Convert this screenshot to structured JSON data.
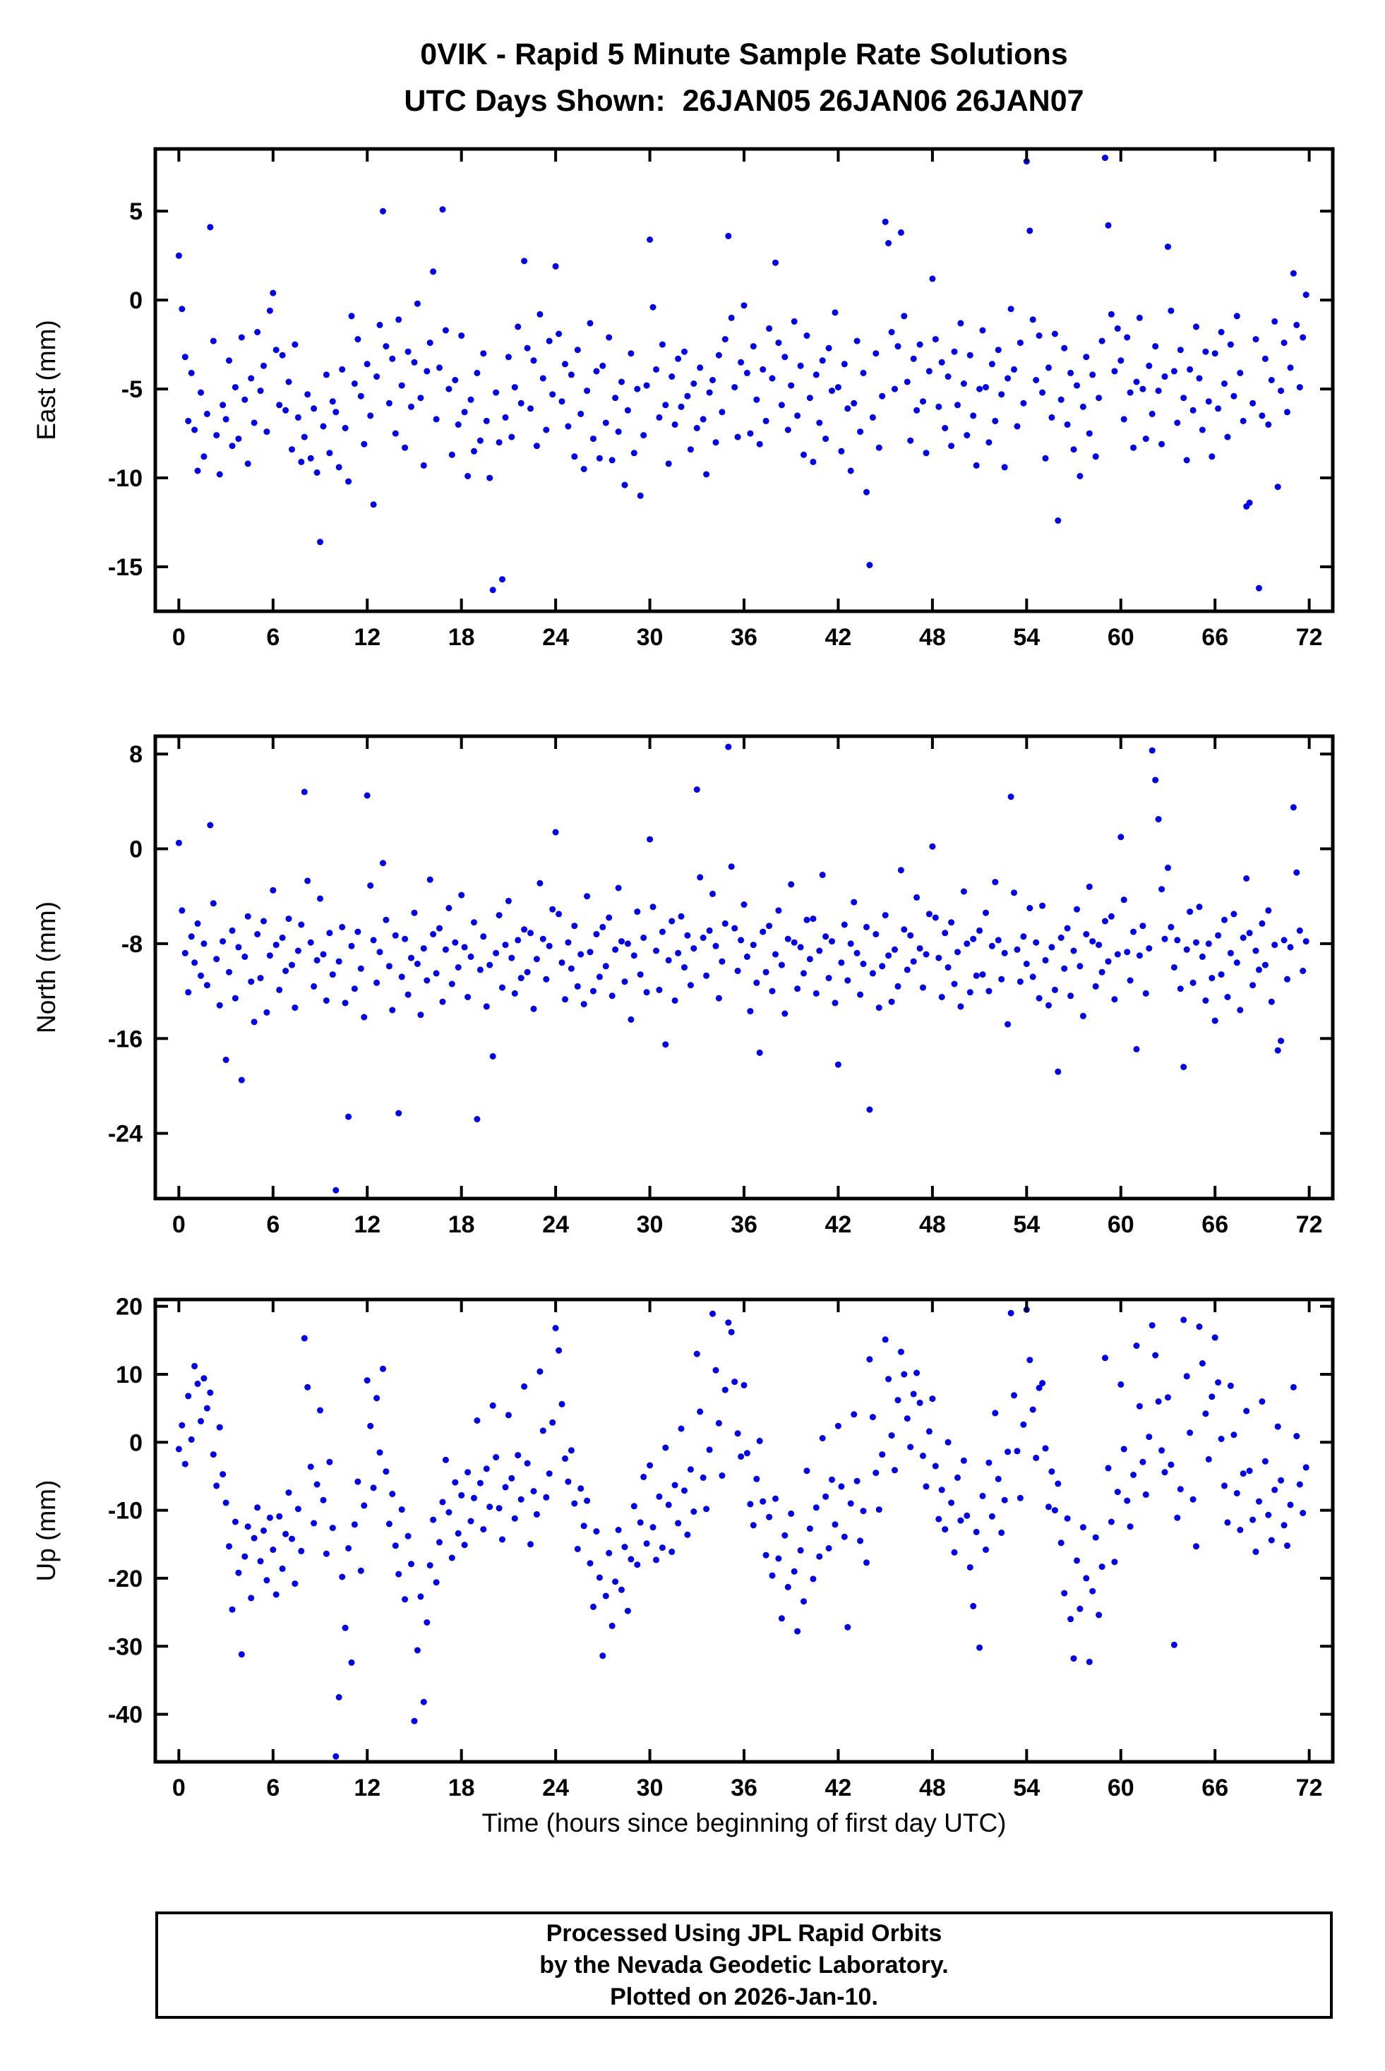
{
  "title": {
    "line1": "0VIK - Rapid 5 Minute Sample Rate Solutions",
    "line2": "UTC Days Shown:  26JAN05 26JAN06 26JAN07"
  },
  "xlabel": "Time (hours since beginning of first day UTC)",
  "footer": {
    "line1": "Processed Using JPL Rapid Orbits",
    "line2": "by the Nevada Geodetic Laboratory.",
    "line3": "Plotted on 2026-Jan-10."
  },
  "style": {
    "point_color": "#0000EE",
    "point_radius": 4.5,
    "frame_color": "#000000"
  },
  "chart_data": [
    {
      "type": "scatter",
      "name": "east",
      "ylabel": "East (mm)",
      "x_start": 0,
      "x_step": 0.2,
      "xlim": [
        -1.5,
        73.5
      ],
      "ylim": [
        -17.5,
        8.5
      ],
      "xticks": [
        0,
        6,
        12,
        18,
        24,
        30,
        36,
        42,
        48,
        54,
        60,
        66,
        72
      ],
      "yticks": [
        5,
        0,
        -5,
        -10,
        -15
      ],
      "y": [
        2.5,
        -0.5,
        -3.2,
        -6.8,
        -4.1,
        -7.3,
        -9.6,
        -5.2,
        -8.8,
        -6.4,
        4.1,
        -2.3,
        -7.6,
        -9.8,
        -5.9,
        -6.7,
        -3.4,
        -8.2,
        -4.9,
        -7.8,
        -2.1,
        -5.6,
        -9.2,
        -4.4,
        -6.9,
        -1.8,
        -5.1,
        -3.7,
        -7.4,
        -0.6,
        0.4,
        -2.8,
        -5.9,
        -3.1,
        -6.2,
        -4.6,
        -8.4,
        -2.5,
        -6.6,
        -9.1,
        -7.7,
        -5.3,
        -8.9,
        -6.1,
        -9.7,
        -13.6,
        -7.1,
        -4.2,
        -8.6,
        -5.7,
        -6.3,
        -9.4,
        -3.9,
        -7.2,
        -10.2,
        -0.9,
        -4.7,
        -2.2,
        -5.4,
        -8.1,
        -3.6,
        -6.5,
        -11.5,
        -4.3,
        -1.4,
        5.0,
        -2.6,
        -5.8,
        -3.3,
        -7.5,
        -1.1,
        -4.8,
        -8.3,
        -2.9,
        -6.0,
        -3.5,
        -0.2,
        -5.5,
        -9.3,
        -4.0,
        -2.4,
        1.6,
        -6.7,
        -3.8,
        5.1,
        -1.7,
        -5.0,
        -8.7,
        -4.5,
        -7.0,
        -2.0,
        -6.3,
        -9.9,
        -5.6,
        -8.5,
        -4.1,
        -7.9,
        -3.0,
        -6.8,
        -10.0,
        -16.3,
        -5.2,
        -8.0,
        -15.7,
        -6.6,
        -3.2,
        -7.7,
        -4.9,
        -1.5,
        -5.8,
        2.2,
        -2.7,
        -6.1,
        -3.4,
        -8.2,
        -0.8,
        -4.4,
        -7.3,
        -2.3,
        -5.3,
        1.9,
        -1.9,
        -5.7,
        -3.6,
        -7.1,
        -4.2,
        -8.8,
        -2.8,
        -6.4,
        -9.5,
        -5.1,
        -1.3,
        -7.8,
        -4.0,
        -8.9,
        -3.7,
        -6.9,
        -2.1,
        -9.0,
        -5.5,
        -7.4,
        -4.6,
        -10.4,
        -6.2,
        -3.0,
        -8.6,
        -5.0,
        -11.0,
        -7.6,
        -4.8,
        3.4,
        -0.4,
        -3.9,
        -6.6,
        -2.5,
        -5.9,
        -9.2,
        -4.3,
        -7.0,
        -3.3,
        -6.0,
        -2.9,
        -5.4,
        -8.4,
        -4.7,
        -7.2,
        -3.8,
        -6.7,
        -9.8,
        -5.2,
        -4.5,
        -8.0,
        -3.1,
        -6.3,
        -2.2,
        3.6,
        -1.0,
        -4.9,
        -7.7,
        -3.5,
        -0.3,
        -4.1,
        -7.5,
        -2.6,
        -5.6,
        -8.1,
        -3.9,
        -6.8,
        -1.6,
        -4.4,
        2.1,
        -2.4,
        -5.9,
        -3.2,
        -7.3,
        -4.8,
        -1.2,
        -6.5,
        -3.7,
        -8.7,
        -2.0,
        -5.5,
        -9.1,
        -4.2,
        -6.9,
        -3.4,
        -7.8,
        -2.7,
        -5.1,
        -0.7,
        -4.9,
        -8.5,
        -3.6,
        -6.1,
        -9.6,
        -5.8,
        -2.3,
        -7.4,
        -4.1,
        -10.8,
        -14.9,
        -6.6,
        -3.0,
        -8.3,
        -5.4,
        4.4,
        3.2,
        -1.8,
        -5.0,
        -2.6,
        3.8,
        -0.9,
        -4.6,
        -7.9,
        -3.3,
        -6.2,
        -2.5,
        -5.7,
        -8.6,
        -4.0,
        1.2,
        -2.2,
        -6.0,
        -3.5,
        -7.2,
        -4.3,
        -8.2,
        -2.9,
        -5.9,
        -1.3,
        -4.7,
        -7.6,
        -3.1,
        -6.5,
        -9.3,
        -5.0,
        -1.7,
        -4.9,
        -8.0,
        -3.6,
        -6.8,
        -2.8,
        -5.3,
        -9.4,
        -4.4,
        -0.5,
        -3.9,
        -7.1,
        -2.4,
        -5.8,
        7.8,
        3.9,
        -1.1,
        -4.5,
        -2.0,
        -5.2,
        -8.9,
        -3.8,
        -6.6,
        -1.9,
        -12.4,
        -5.6,
        -2.7,
        -7.0,
        -4.1,
        -8.4,
        -4.8,
        -9.9,
        -6.0,
        -3.2,
        -7.5,
        -4.2,
        -8.8,
        -5.5,
        -2.3,
        8.0,
        4.2,
        -0.8,
        -4.0,
        -1.6,
        -3.4,
        -6.7,
        -2.1,
        -5.2,
        -8.3,
        -4.6,
        -1.0,
        -5.0,
        -7.8,
        -3.7,
        -6.4,
        -2.6,
        -5.1,
        -8.1,
        -4.3,
        3.0,
        -0.6,
        -4.0,
        -6.9,
        -2.8,
        -5.5,
        -9.0,
        -3.9,
        -6.2,
        -1.5,
        -4.4,
        -7.3,
        -2.9,
        -5.7,
        -8.8,
        -3.0,
        -6.1,
        -1.8,
        -4.7,
        -7.7,
        -2.5,
        -5.4,
        -0.9,
        -4.1,
        -6.8,
        -11.6,
        -11.4,
        -5.8,
        -2.2,
        -16.2,
        -6.5,
        -3.3,
        -7.0,
        -4.5,
        -1.2,
        -10.5,
        -5.1,
        -2.4,
        -6.3,
        -3.8,
        1.5,
        -1.4,
        -4.9,
        -2.1,
        0.3
      ]
    },
    {
      "type": "scatter",
      "name": "north",
      "ylabel": "North (mm)",
      "x_start": 0,
      "x_step": 0.2,
      "xlim": [
        -1.5,
        73.5
      ],
      "ylim": [
        -29.5,
        9.5
      ],
      "xticks": [
        0,
        6,
        12,
        18,
        24,
        30,
        36,
        42,
        48,
        54,
        60,
        66,
        72
      ],
      "yticks": [
        8,
        0,
        -8,
        -16,
        -24
      ],
      "y": [
        0.5,
        -5.2,
        -8.8,
        -12.1,
        -7.4,
        -9.6,
        -6.3,
        -10.7,
        -8.0,
        -11.5,
        2.0,
        -4.6,
        -9.3,
        -13.2,
        -7.8,
        -17.8,
        -10.4,
        -6.9,
        -12.6,
        -8.3,
        -19.5,
        -9.1,
        -5.7,
        -11.2,
        -14.6,
        -7.2,
        -10.9,
        -6.1,
        -13.8,
        -9.0,
        -3.5,
        -8.1,
        -11.9,
        -7.5,
        -10.3,
        -5.9,
        -9.8,
        -13.4,
        -8.6,
        -6.4,
        4.8,
        -2.7,
        -7.9,
        -11.6,
        -9.4,
        -4.2,
        -8.9,
        -12.8,
        -7.1,
        -10.6,
        -28.8,
        -9.5,
        -6.6,
        -13.0,
        -22.6,
        -8.2,
        -11.8,
        -7.0,
        -10.1,
        -14.2,
        4.5,
        -3.1,
        -7.7,
        -11.3,
        -8.7,
        -1.2,
        -6.0,
        -9.9,
        -13.6,
        -7.3,
        -22.3,
        -10.8,
        -7.6,
        -12.3,
        -9.2,
        -5.4,
        -9.7,
        -14.0,
        -8.4,
        -11.1,
        -2.6,
        -7.2,
        -10.5,
        -6.7,
        -12.9,
        -8.5,
        -5.0,
        -11.4,
        -7.9,
        -10.0,
        -3.9,
        -8.3,
        -12.5,
        -9.1,
        -6.2,
        -22.8,
        -10.2,
        -7.4,
        -13.3,
        -9.8,
        -17.5,
        -8.8,
        -5.6,
        -11.7,
        -8.1,
        -4.4,
        -9.2,
        -12.2,
        -7.7,
        -10.9,
        -6.8,
        -10.4,
        -7.1,
        -13.5,
        -9.3,
        -2.9,
        -7.6,
        -11.0,
        -8.2,
        -5.1,
        1.4,
        -5.5,
        -9.6,
        -12.7,
        -7.9,
        -10.1,
        -6.5,
        -11.6,
        -8.9,
        -13.1,
        -4.0,
        -8.7,
        -12.0,
        -7.2,
        -10.8,
        -6.6,
        -9.9,
        -5.8,
        -12.4,
        -8.5,
        -3.3,
        -7.8,
        -11.2,
        -8.0,
        -14.4,
        -9.0,
        -5.3,
        -10.6,
        -7.5,
        -12.1,
        0.8,
        -4.9,
        -8.6,
        -11.9,
        -7.0,
        -16.5,
        -9.4,
        -6.1,
        -12.8,
        -8.8,
        -5.7,
        -10.0,
        -7.3,
        -11.5,
        -8.4,
        5.0,
        -2.4,
        -7.5,
        -10.7,
        -6.9,
        -3.8,
        -8.2,
        -12.6,
        -9.5,
        -6.3,
        8.6,
        -1.5,
        -6.7,
        -10.3,
        -7.7,
        -4.7,
        -9.1,
        -13.7,
        -8.1,
        -11.3,
        -17.2,
        -7.0,
        -10.4,
        -6.5,
        -12.0,
        -8.9,
        -5.2,
        -9.8,
        -13.9,
        -7.6,
        -3.0,
        -7.9,
        -11.8,
        -8.3,
        -10.5,
        -6.0,
        -9.3,
        -5.9,
        -12.2,
        -8.6,
        -2.2,
        -7.4,
        -10.9,
        -7.8,
        -13.0,
        -18.2,
        -9.6,
        -6.4,
        -11.1,
        -8.0,
        -4.5,
        -8.8,
        -12.3,
        -9.7,
        -6.6,
        -22.0,
        -10.5,
        -7.2,
        -13.4,
        -9.9,
        -5.6,
        -9.0,
        -12.9,
        -8.5,
        -11.6,
        -1.8,
        -6.8,
        -10.2,
        -7.3,
        -9.5,
        -4.1,
        -8.4,
        -11.7,
        -8.9,
        -5.5,
        0.2,
        -5.8,
        -9.2,
        -12.5,
        -7.1,
        -10.0,
        -6.2,
        -11.4,
        -8.7,
        -13.3,
        -3.6,
        -8.0,
        -12.1,
        -7.6,
        -10.7,
        -6.9,
        -10.6,
        -5.4,
        -12.0,
        -8.2,
        -2.8,
        -7.7,
        -11.0,
        -8.8,
        -14.8,
        4.4,
        -3.7,
        -8.5,
        -11.2,
        -7.4,
        -9.7,
        -5.0,
        -10.8,
        -7.9,
        -12.6,
        -4.8,
        -9.4,
        -13.2,
        -8.3,
        -11.9,
        -18.8,
        -7.5,
        -10.1,
        -6.7,
        -12.4,
        -8.6,
        -5.1,
        -9.9,
        -14.1,
        -7.2,
        -3.2,
        -7.8,
        -11.6,
        -8.1,
        -10.4,
        -6.1,
        -9.5,
        -5.7,
        -12.7,
        -8.9,
        1.0,
        -4.3,
        -8.7,
        -11.1,
        -7.0,
        -16.9,
        -9.0,
        -6.5,
        -12.2,
        -8.4,
        8.3,
        5.8,
        2.5,
        -3.4,
        -7.6,
        -1.6,
        -6.6,
        -10.0,
        -7.7,
        -11.8,
        -18.4,
        -8.5,
        -5.3,
        -11.3,
        -7.9,
        -4.9,
        -9.1,
        -12.8,
        -8.0,
        -10.9,
        -14.5,
        -7.3,
        -10.6,
        -6.0,
        -12.5,
        -8.8,
        -5.5,
        -9.6,
        -13.6,
        -7.5,
        -2.5,
        -7.1,
        -11.5,
        -8.6,
        -10.2,
        -6.3,
        -9.8,
        -5.2,
        -12.9,
        -8.1,
        -17.0,
        -16.2,
        -7.7,
        -11.0,
        -8.3,
        3.5,
        -2.0,
        -6.9,
        -10.3,
        -7.8
      ]
    },
    {
      "type": "scatter",
      "name": "up",
      "ylabel": "Up (mm)",
      "x_start": 0,
      "x_step": 0.2,
      "xlim": [
        -1.5,
        73.5
      ],
      "ylim": [
        -47,
        21
      ],
      "xticks": [
        0,
        6,
        12,
        18,
        24,
        30,
        36,
        42,
        48,
        54,
        60,
        66,
        72
      ],
      "yticks": [
        20,
        10,
        0,
        -10,
        -20,
        -30,
        -40
      ],
      "y": [
        -1.0,
        2.5,
        -3.2,
        6.8,
        0.4,
        11.2,
        8.6,
        3.1,
        9.4,
        5.0,
        7.3,
        -1.8,
        -6.4,
        2.2,
        -4.7,
        -8.9,
        -15.3,
        -24.6,
        -11.7,
        -19.2,
        -31.2,
        -16.8,
        -12.4,
        -22.9,
        -14.1,
        -9.6,
        -17.5,
        -13.0,
        -20.3,
        -11.1,
        -15.8,
        -22.4,
        -10.9,
        -18.6,
        -13.5,
        -7.4,
        -14.2,
        -20.8,
        -9.8,
        -16.0,
        15.3,
        8.1,
        -3.6,
        -11.9,
        -6.2,
        4.7,
        -8.5,
        -16.4,
        -2.9,
        -12.6,
        -46.2,
        -37.5,
        -19.8,
        -27.3,
        -15.6,
        -32.4,
        -12.1,
        -5.8,
        -18.9,
        -9.3,
        9.1,
        2.4,
        -6.7,
        6.5,
        -1.5,
        10.8,
        -4.3,
        -12.0,
        -7.6,
        -15.2,
        -19.4,
        -9.9,
        -23.1,
        -13.8,
        -17.9,
        -41.0,
        -30.6,
        -22.7,
        -38.2,
        -26.5,
        -18.1,
        -11.4,
        -20.6,
        -14.7,
        -8.8,
        -2.6,
        -10.3,
        -17.0,
        -5.9,
        -13.4,
        -7.8,
        -15.1,
        -4.4,
        -11.6,
        -8.2,
        3.2,
        -6.0,
        -12.8,
        -3.9,
        -9.5,
        5.4,
        -2.2,
        -9.7,
        -14.3,
        -6.6,
        4.0,
        -5.3,
        -11.2,
        -1.9,
        -8.4,
        8.2,
        -3.1,
        -15.0,
        -7.2,
        -10.6,
        10.4,
        1.7,
        -8.1,
        -4.6,
        2.9,
        16.8,
        13.5,
        5.6,
        -2.4,
        -5.8,
        -1.2,
        -9.0,
        -15.7,
        -6.8,
        -12.3,
        -8.6,
        -17.8,
        -24.2,
        -13.1,
        -19.9,
        -31.4,
        -22.6,
        -16.3,
        -27.0,
        -20.5,
        -12.9,
        -21.7,
        -15.4,
        -24.8,
        -17.2,
        -9.4,
        -18.0,
        -11.8,
        -5.1,
        -14.9,
        -3.4,
        -12.5,
        -17.3,
        -8.0,
        -15.5,
        -0.8,
        -9.2,
        -16.1,
        -6.3,
        -11.9,
        2.0,
        -7.1,
        -13.6,
        -4.0,
        -10.2,
        13.0,
        4.5,
        -5.2,
        -9.8,
        -1.1,
        18.9,
        10.6,
        2.8,
        -4.9,
        7.7,
        17.6,
        16.2,
        8.9,
        1.3,
        -2.1,
        8.4,
        -1.6,
        -9.1,
        -12.2,
        -5.4,
        0.2,
        -8.7,
        -16.6,
        -11.0,
        -19.6,
        -8.3,
        -17.1,
        -25.9,
        -13.7,
        -21.3,
        -10.5,
        -19.0,
        -27.8,
        -15.9,
        -23.4,
        -4.2,
        -12.7,
        -20.1,
        -9.6,
        -16.8,
        0.6,
        -8.0,
        -15.6,
        -5.5,
        -12.1,
        2.4,
        -6.5,
        -13.9,
        -27.2,
        -9.0,
        4.1,
        -5.7,
        -14.5,
        -10.1,
        -17.7,
        12.2,
        3.7,
        -4.5,
        -9.9,
        -1.8,
        15.1,
        9.3,
        1.0,
        -4.1,
        6.2,
        13.3,
        10.0,
        3.5,
        -0.7,
        7.1,
        10.2,
        5.8,
        -2.0,
        -6.5,
        1.6,
        6.4,
        -3.5,
        -11.3,
        -7.0,
        -12.8,
        0.0,
        -8.9,
        -16.2,
        -5.2,
        -11.5,
        -2.7,
        -10.8,
        -18.4,
        -24.1,
        -13.2,
        -30.2,
        -7.9,
        -15.8,
        -3.0,
        -10.9,
        4.3,
        -5.4,
        -13.3,
        -8.5,
        -1.4,
        19.0,
        6.9,
        -1.3,
        -8.2,
        2.6,
        19.5,
        12.1,
        4.8,
        -2.3,
        8.0,
        8.7,
        -0.9,
        -9.5,
        -4.3,
        -10.0,
        -6.1,
        -14.8,
        -22.2,
        -11.2,
        -26.0,
        -31.8,
        -17.4,
        -24.5,
        -12.5,
        -20.0,
        -32.3,
        -21.9,
        -14.0,
        -25.4,
        -18.3,
        12.4,
        -3.8,
        -11.7,
        -17.6,
        -7.3,
        8.5,
        -1.0,
        -8.6,
        -12.4,
        -4.8,
        14.2,
        5.3,
        -2.9,
        -7.7,
        0.8,
        17.2,
        12.8,
        6.0,
        -1.2,
        -4.4,
        6.6,
        -3.3,
        -29.8,
        -11.1,
        -6.9,
        18.0,
        9.7,
        1.4,
        -8.4,
        -15.3,
        17.0,
        11.6,
        4.2,
        -2.5,
        6.7,
        15.4,
        8.8,
        0.5,
        -6.4,
        -11.8,
        8.3,
        1.1,
        -7.5,
        -12.9,
        -4.6,
        4.6,
        -4.2,
        -11.4,
        -16.1,
        -8.7,
        6.0,
        -2.8,
        -10.7,
        -14.4,
        -7.0,
        2.3,
        -5.6,
        -12.2,
        -15.2,
        -9.2,
        8.1,
        0.9,
        -6.2,
        -10.4,
        -3.7
      ]
    }
  ]
}
